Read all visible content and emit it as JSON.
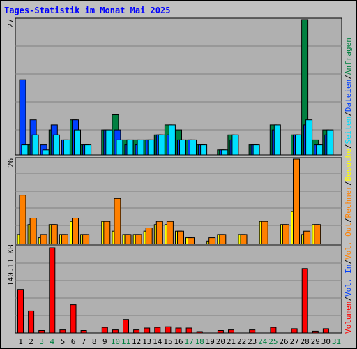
{
  "title": "Tages-Statistik im Monat Mai 2025",
  "colors": {
    "page_bg": "#c0c0c0",
    "plot_bg": "#b0b0b0",
    "title": "#0000ff",
    "grid": "#808080",
    "hits": "#008040",
    "files": "#0040ff",
    "pages": "#00e0ff",
    "visits": "#ffff00",
    "sites": "#ff8000",
    "kbytes": "#ff0000",
    "weekend_label": "#008040",
    "weekday_label": "#000000"
  },
  "chart_data": [
    {
      "type": "bar",
      "name": "top",
      "ymax_label": "27",
      "ymax": 27,
      "series": [
        {
          "key": "hits",
          "label": "Anfragen",
          "values": [
            0,
            2,
            0,
            5,
            0,
            7,
            2,
            0,
            5,
            8,
            3,
            3,
            3,
            4,
            6,
            5,
            3,
            2,
            0,
            1,
            4,
            0,
            2,
            0,
            6,
            0,
            4,
            27,
            3,
            5,
            0
          ]
        },
        {
          "key": "files",
          "label": "Dateien",
          "values": [
            15,
            7,
            2,
            6,
            3,
            7,
            2,
            0,
            5,
            5,
            2,
            2,
            3,
            4,
            4,
            3,
            3,
            2,
            0,
            1,
            3,
            0,
            2,
            0,
            5,
            0,
            4,
            6,
            2,
            4,
            0
          ]
        },
        {
          "key": "pages",
          "label": "Seiten",
          "values": [
            2,
            4,
            1,
            4,
            3,
            5,
            2,
            0,
            5,
            3,
            3,
            3,
            3,
            4,
            6,
            3,
            3,
            2,
            0,
            1,
            4,
            0,
            2,
            0,
            6,
            0,
            4,
            7,
            2,
            5,
            0
          ]
        }
      ]
    },
    {
      "type": "bar",
      "name": "middle",
      "ymax_label": "26",
      "ymax": 26,
      "series": [
        {
          "key": "visits",
          "label": "Besuche",
          "values": [
            3,
            6,
            2,
            6,
            3,
            7,
            3,
            0,
            7,
            4,
            3,
            3,
            4,
            6,
            6,
            4,
            2,
            0,
            1,
            3,
            0,
            3,
            0,
            7,
            0,
            6,
            10,
            3,
            6,
            0,
            0
          ]
        },
        {
          "key": "sites",
          "label": "Rechner",
          "values": [
            15,
            8,
            3,
            6,
            3,
            8,
            3,
            0,
            7,
            14,
            3,
            3,
            5,
            7,
            7,
            4,
            2,
            0,
            2,
            3,
            0,
            3,
            0,
            7,
            0,
            6,
            26,
            4,
            6,
            0,
            0
          ]
        }
      ]
    },
    {
      "type": "bar",
      "name": "bottom",
      "ymax_label": "140.11 KB",
      "ymax": 140.11,
      "series": [
        {
          "key": "kbytes",
          "label": "Volumen",
          "values": [
            71,
            36,
            4,
            139,
            5,
            46,
            4,
            0,
            9,
            5,
            22,
            5,
            8,
            9,
            10,
            8,
            8,
            2,
            0,
            4,
            5,
            0,
            5,
            0,
            9,
            0,
            7,
            105,
            3,
            7,
            0
          ]
        }
      ]
    }
  ],
  "right_legend": [
    "Anfragen",
    "/",
    "Dateien",
    "/",
    "Seiten",
    "/",
    "Besuche",
    "/",
    "Rechner",
    "/",
    "Vol. Out",
    "/",
    "Vol. In",
    "/",
    "Volumen"
  ],
  "days": [
    "1",
    "2",
    "3",
    "4",
    "5",
    "6",
    "7",
    "8",
    "9",
    "10",
    "11",
    "12",
    "13",
    "14",
    "15",
    "16",
    "17",
    "18",
    "19",
    "20",
    "21",
    "22",
    "23",
    "24",
    "25",
    "26",
    "27",
    "28",
    "29",
    "30",
    "31"
  ],
  "weekend_days": [
    3,
    4,
    10,
    11,
    17,
    18,
    24,
    25,
    31
  ]
}
